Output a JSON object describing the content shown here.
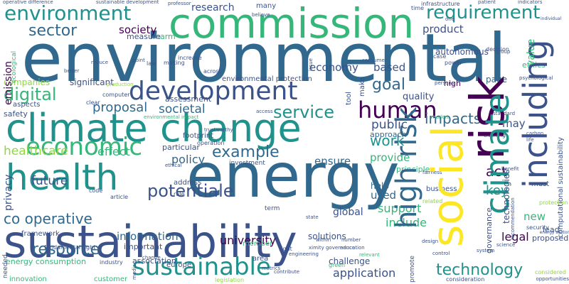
{
  "palette": {
    "dark_purple": "#440154",
    "indigo": "#3b528b",
    "blue": "#31688e",
    "teal": "#21918c",
    "green": "#35b779",
    "lime": "#90d743",
    "yellow": "#fde725"
  },
  "words": {
    "environmental": "environmental",
    "energy": "energy",
    "sustainability": "sustainability",
    "climate_change": "climate change",
    "commission": "commission",
    "development": "development",
    "health": "health",
    "social": "social",
    "risk": "risk",
    "climate": "climate",
    "including": "including",
    "high_risk": "high risk",
    "sustainable": "sustainable",
    "economic": "economic",
    "human": "human",
    "potentiale": "potentiale",
    "environment": "environment",
    "requirement": "requirement",
    "service": "service",
    "example": "example",
    "technology": "technology",
    "resource": "resource",
    "sector": "sector",
    "co_operative": "co operative",
    "digital": "digital",
    "work": "work",
    "goal": "goal",
    "proposal": "proposal",
    "societal": "societal",
    "impacts": "impacts",
    "healthcare": "healthcare",
    "effect": "effect",
    "policy": "policy",
    "future": "future",
    "information": "information",
    "university": "university",
    "support": "support",
    "application": "application",
    "include": "include",
    "legal": "legal",
    "key": "key",
    "new": "new",
    "act": "act",
    "public": "public",
    "may": "may",
    "product": "product",
    "economy": "economy",
    "based": "based",
    "research": "research",
    "society": "society",
    "provide": "provide",
    "ensure": "ensure",
    "used": "used",
    "global": "global",
    "emission": "emission",
    "privacy": "privacy",
    "quality": "quality",
    "companies": "companies",
    "significant": "significant",
    "value": "value",
    "technologies": "technologies",
    "governance": "governance",
    "solutions": "solutions",
    "help": "help",
    "principle": "principle",
    "association": "association",
    "challenge": "challenge",
    "energy_consumption": "energy consumption",
    "important": "important",
    "safety": "safety",
    "aspects": "aspects",
    "framework": "framework",
    "page": "page",
    "ethics": "ethics",
    "proposed": "proposed",
    "lead": "lead",
    "must": "must",
    "computational_sustainability": "computational sustainability",
    "autonomous": "autonomous",
    "infrastructure": "infrastructure",
    "environmental_protection": "environmental protection",
    "many": "many",
    "harm": "harm",
    "measure": "measure",
    "assessment": "assessment",
    "particular": "particular",
    "address": "address",
    "fundamental_right": "fundamental right",
    "innovation": "innovation",
    "needed": "needed",
    "customer": "customer",
    "industry": "industry",
    "europe": "europe",
    "legislation": "legislation",
    "term": "term",
    "investment": "investment",
    "footprint": "footprint",
    "ecological": "ecological",
    "tool": "tool",
    "make": "make",
    "high": "high",
    "approach": "approach",
    "business": "business",
    "member": "member",
    "area": "area",
    "right": "right",
    "promote": "promote",
    "case": "case",
    "power": "power",
    "decision": "decision",
    "time": "time",
    "law": "law",
    "making": "making",
    "across": "across",
    "increase": "increase",
    "computer": "computer",
    "production": "production",
    "clear": "clear",
    "rule": "rule",
    "article": "article",
    "code": "code",
    "operation": "operation",
    "trustworthy": "trustworthy",
    "green": "green",
    "related": "related",
    "training": "training",
    "security": "security",
    "protection": "protection",
    "considered": "considered",
    "consideration": "consideration",
    "opportunities": "opportunities",
    "operative_difference": "operative difference",
    "sustainable_development": "sustainable development",
    "professor": "professor",
    "patient": "patient",
    "indicators": "indicators",
    "individual": "individual",
    "reduce": "reduce",
    "better": "better",
    "environmental_impact": "environmental impact",
    "standard": "standard",
    "carbon": "carbon",
    "life": "life",
    "state": "state",
    "access": "access",
    "science": "science",
    "design": "design",
    "system": "system",
    "psychological": "psychological",
    "persons": "persons",
    "issue": "issue",
    "consumer": "consumer",
    "market": "market",
    "group": "group",
    "benefit": "benefit",
    "contribute": "contribute",
    "metrics": "metrics",
    "number": "number",
    "education": "education",
    "within": "within",
    "engineering": "engineering",
    "relevant": "relevant",
    "control": "control",
    "media": "media",
    "point": "point",
    "one": "one",
    "change": "change",
    "believe": "believe",
    "energy_sector": "energy sector",
    "recommendation": "recommendation",
    "fairness": "fairness",
    "ethical": "ethical",
    "proximity_governance": "ximity governance"
  }
}
